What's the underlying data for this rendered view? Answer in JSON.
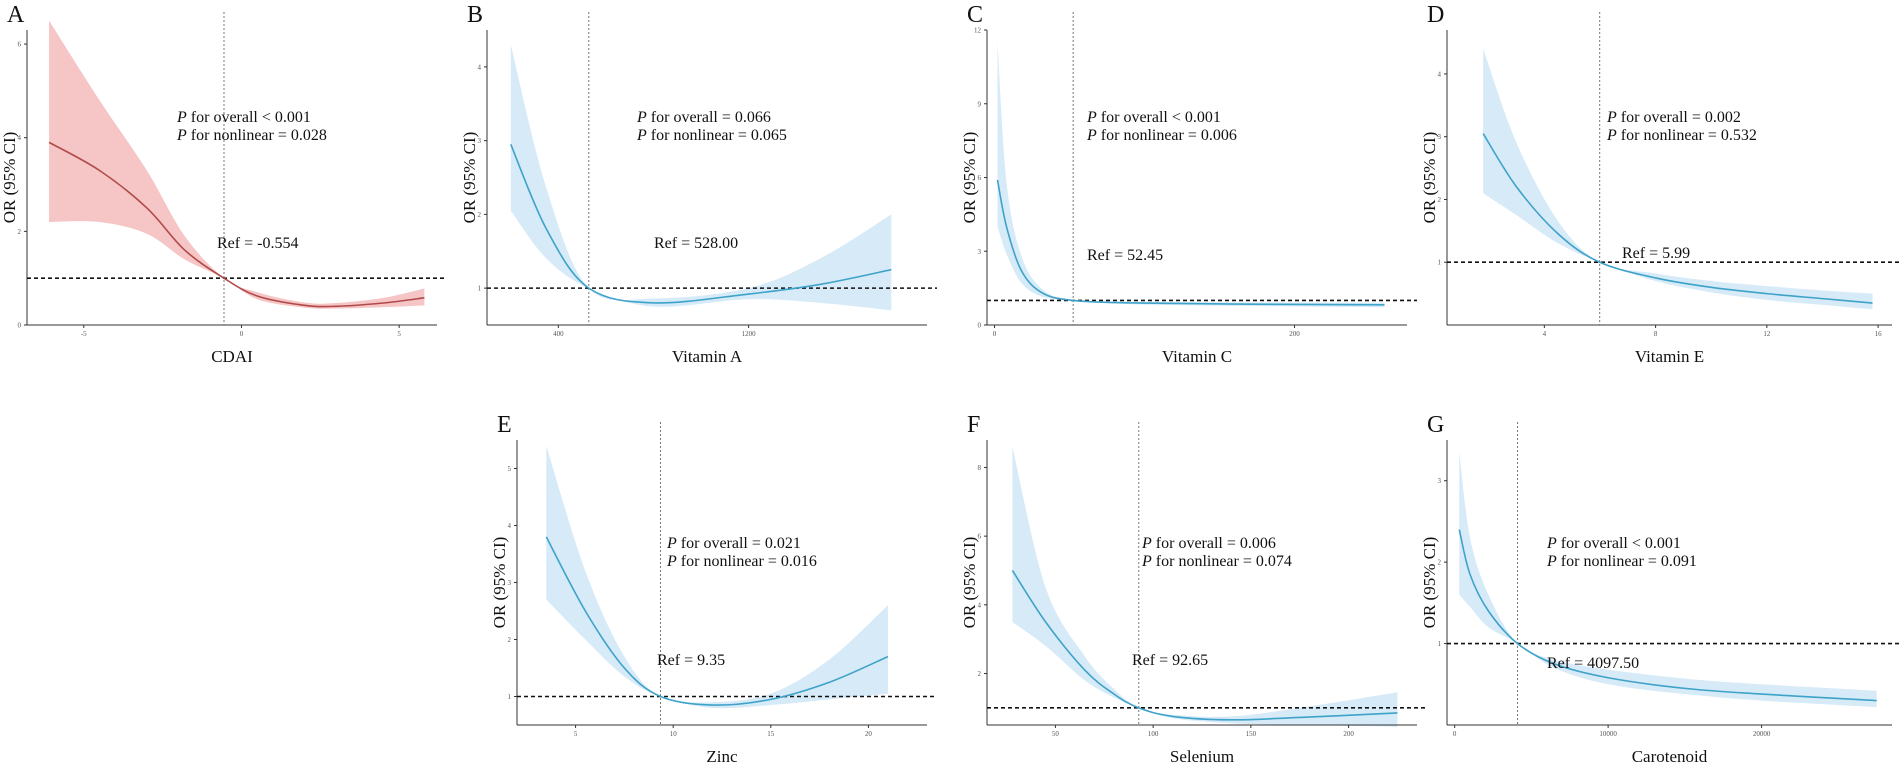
{
  "figure": {
    "colors": {
      "red_line": "#b04a4a",
      "red_band": "#f6c5c5",
      "blue_line": "#3ea2c9",
      "blue_band": "#d6eaf8"
    },
    "ylabel": "OR (95% CI)",
    "stat_prefix": "P",
    "overall_text": "for overall",
    "nonlinear_text": "for nonlinear"
  },
  "chart_data": [
    {
      "id": "A",
      "type": "line",
      "xlabel": "CDAI",
      "color": "red",
      "p_overall": "< 0.001",
      "p_nonlinear": "= 0.028",
      "ref_label": "Ref = -0.554",
      "ref_x": -0.554,
      "ref_y": 1,
      "xlim": [
        -6.8,
        6.2
      ],
      "ylim": [
        0,
        6.3
      ],
      "xticks": [
        -5,
        0,
        5
      ],
      "yticks": [
        0,
        2,
        4,
        6
      ],
      "x": [
        -6.1,
        -4.5,
        -3.0,
        -1.8,
        -0.554,
        0.5,
        2,
        3,
        4.5,
        5.8
      ],
      "y": [
        3.9,
        3.3,
        2.5,
        1.6,
        1.0,
        0.62,
        0.42,
        0.4,
        0.47,
        0.58
      ],
      "lower": [
        2.2,
        2.2,
        1.95,
        1.4,
        1.0,
        0.55,
        0.37,
        0.35,
        0.38,
        0.42
      ],
      "upper": [
        6.5,
        4.8,
        3.3,
        1.9,
        1.0,
        0.7,
        0.48,
        0.47,
        0.58,
        0.78
      ]
    },
    {
      "id": "B",
      "type": "line",
      "xlabel": "Vitamin A",
      "color": "blue",
      "p_overall": "= 0.066",
      "p_nonlinear": "= 0.065",
      "ref_label": "Ref = 528.00",
      "ref_x": 528,
      "ref_y": 1,
      "xlim": [
        100,
        1950
      ],
      "ylim": [
        0.5,
        4.5
      ],
      "xticks": [
        400,
        1200
      ],
      "yticks": [
        1,
        2,
        3,
        4
      ],
      "x": [
        200,
        350,
        528,
        800,
        1200,
        1500,
        1800
      ],
      "y": [
        2.95,
        1.8,
        1.0,
        0.8,
        0.92,
        1.05,
        1.25
      ],
      "lower": [
        2.05,
        1.4,
        1.0,
        0.75,
        0.85,
        0.8,
        0.7
      ],
      "upper": [
        4.3,
        2.35,
        1.0,
        0.86,
        1.0,
        1.4,
        2.0
      ]
    },
    {
      "id": "C",
      "type": "line",
      "xlabel": "Vitamin C",
      "color": "blue",
      "p_overall": "< 0.001",
      "p_nonlinear": "= 0.006",
      "ref_label": "Ref = 52.45",
      "ref_x": 52.45,
      "ref_y": 1,
      "xlim": [
        -5,
        275
      ],
      "ylim": [
        0,
        12
      ],
      "xticks": [
        0,
        200
      ],
      "yticks": [
        0,
        3,
        6,
        9,
        12
      ],
      "x": [
        2,
        8,
        18,
        32,
        52.45,
        90,
        160,
        260
      ],
      "y": [
        5.9,
        4.0,
        2.2,
        1.3,
        1.0,
        0.9,
        0.85,
        0.82
      ],
      "lower": [
        4.0,
        2.9,
        1.7,
        1.15,
        1.0,
        0.85,
        0.78,
        0.72
      ],
      "upper": [
        11.5,
        5.8,
        2.8,
        1.45,
        1.0,
        0.95,
        0.92,
        0.9
      ]
    },
    {
      "id": "D",
      "type": "line",
      "xlabel": "Vitamin E",
      "color": "blue",
      "p_overall": "= 0.002",
      "p_nonlinear": "= 0.532",
      "ref_label": "Ref = 5.99",
      "ref_x": 5.99,
      "ref_y": 1,
      "xlim": [
        0.5,
        16.5
      ],
      "ylim": [
        0,
        4.7
      ],
      "xticks": [
        4,
        8,
        12,
        16
      ],
      "yticks": [
        1,
        2,
        3,
        4
      ],
      "x": [
        1.8,
        3.0,
        4.5,
        5.99,
        8,
        10,
        12,
        14,
        15.8
      ],
      "y": [
        3.05,
        2.2,
        1.45,
        1.0,
        0.75,
        0.6,
        0.5,
        0.42,
        0.35
      ],
      "lower": [
        2.1,
        1.75,
        1.3,
        1.0,
        0.7,
        0.52,
        0.4,
        0.32,
        0.25
      ],
      "upper": [
        4.4,
        2.9,
        1.65,
        1.0,
        0.82,
        0.7,
        0.62,
        0.55,
        0.5
      ]
    },
    {
      "id": "E",
      "type": "line",
      "xlabel": "Zinc",
      "color": "blue",
      "p_overall": "= 0.021",
      "p_nonlinear": "= 0.016",
      "ref_label": "Ref = 9.35",
      "ref_x": 9.35,
      "ref_y": 1,
      "xlim": [
        2,
        23
      ],
      "ylim": [
        0.5,
        5.5
      ],
      "xticks": [
        5,
        10,
        15,
        20
      ],
      "yticks": [
        1,
        2,
        3,
        4,
        5
      ],
      "x": [
        3.5,
        5.5,
        7.5,
        9.35,
        12,
        15,
        18,
        21
      ],
      "y": [
        3.8,
        2.5,
        1.5,
        1.0,
        0.85,
        0.95,
        1.25,
        1.7
      ],
      "lower": [
        2.7,
        2.0,
        1.35,
        1.0,
        0.8,
        0.85,
        0.95,
        1.05
      ],
      "upper": [
        5.4,
        3.2,
        1.7,
        1.0,
        0.9,
        1.05,
        1.65,
        2.6
      ]
    },
    {
      "id": "F",
      "type": "line",
      "xlabel": "Selenium",
      "color": "blue",
      "p_overall": "= 0.006",
      "p_nonlinear": "= 0.074",
      "ref_label": "Ref = 92.65",
      "ref_x": 92.65,
      "ref_y": 1,
      "xlim": [
        15,
        235
      ],
      "ylim": [
        0.5,
        8.8
      ],
      "xticks": [
        50,
        100,
        150,
        200
      ],
      "yticks": [
        2,
        4,
        6,
        8
      ],
      "x": [
        28,
        45,
        65,
        80,
        92.65,
        110,
        140,
        175,
        225
      ],
      "y": [
        5.0,
        3.5,
        2.1,
        1.4,
        1.0,
        0.75,
        0.65,
        0.72,
        0.85
      ],
      "lower": [
        3.5,
        2.8,
        1.8,
        1.3,
        1.0,
        0.7,
        0.55,
        0.5,
        0.45
      ],
      "upper": [
        8.6,
        4.5,
        2.5,
        1.55,
        1.0,
        0.8,
        0.75,
        1.0,
        1.45
      ]
    },
    {
      "id": "G",
      "type": "line",
      "xlabel": "Carotenoid",
      "color": "blue",
      "p_overall": "< 0.001",
      "p_nonlinear": "= 0.091",
      "ref_label": "Ref = 4097.50",
      "ref_x": 4097.5,
      "ref_y": 1,
      "xlim": [
        -500,
        28500
      ],
      "ylim": [
        0,
        3.5
      ],
      "xticks": [
        0,
        10000,
        20000
      ],
      "yticks": [
        1,
        2,
        3
      ],
      "x": [
        300,
        1000,
        2200,
        4097.5,
        6500,
        10000,
        15000,
        20000,
        27500
      ],
      "y": [
        2.4,
        1.85,
        1.4,
        1.0,
        0.75,
        0.58,
        0.45,
        0.38,
        0.3
      ],
      "lower": [
        1.6,
        1.45,
        1.2,
        1.0,
        0.7,
        0.5,
        0.38,
        0.3,
        0.22
      ],
      "upper": [
        3.35,
        2.3,
        1.6,
        1.0,
        0.8,
        0.68,
        0.57,
        0.5,
        0.42
      ]
    }
  ]
}
